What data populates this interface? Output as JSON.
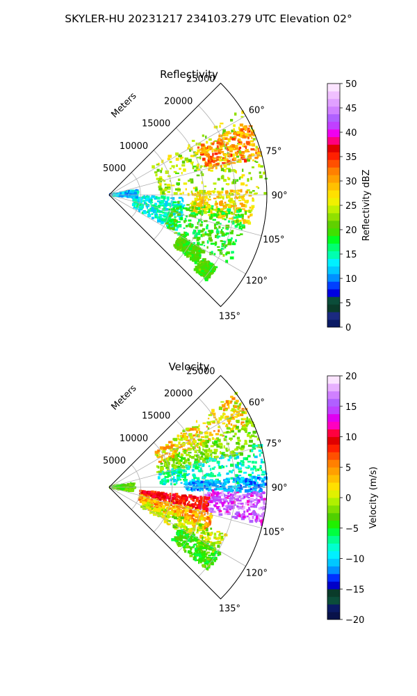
{
  "suptitle": "SKYLER-HU  20231217  234103.279 UTC Elevation 02°",
  "chart_data": [
    {
      "type": "heatmap",
      "title": "Reflectivity",
      "projection": "polar-sector",
      "azimuth_range_deg": [
        45,
        135
      ],
      "range_max_m": 25000,
      "range_label": "Meters",
      "range_ticks": [
        5000,
        10000,
        15000,
        20000,
        25000
      ],
      "range_tick_labels": [
        "5000",
        "10000",
        "15000",
        "20000",
        "25000"
      ],
      "angle_ticks": [
        60,
        75,
        90,
        105,
        120,
        135
      ],
      "angle_tick_labels": [
        "60°",
        "75°",
        "90°",
        "105°",
        "120°",
        "135°"
      ],
      "grid": true,
      "colorbar": {
        "label": "Reflectivity dBZ",
        "vmin": 0,
        "vmax": 50,
        "ticks": [
          0,
          5,
          10,
          15,
          20,
          25,
          30,
          35,
          40,
          45,
          50
        ],
        "tick_labels": [
          "0",
          "5",
          "10",
          "15",
          "20",
          "25",
          "30",
          "35",
          "40",
          "45",
          "50"
        ]
      },
      "echo_regions": [
        {
          "az": [
            57,
            90
          ],
          "r": [
            8000,
            25000
          ],
          "value": 24,
          "spread": 4
        },
        {
          "az": [
            62,
            76
          ],
          "r": [
            16000,
            25000
          ],
          "value": 31,
          "spread": 4
        },
        {
          "az": [
            88,
            102
          ],
          "r": [
            13000,
            23000
          ],
          "value": 27,
          "spread": 4
        },
        {
          "az": [
            92,
            118
          ],
          "r": [
            4000,
            12000
          ],
          "value": 14,
          "spread": 3
        },
        {
          "az": [
            96,
            120
          ],
          "r": [
            10000,
            22000
          ],
          "value": 19,
          "spread": 3
        },
        {
          "az": [
            80,
            96
          ],
          "r": [
            300,
            4500
          ],
          "value": 12,
          "spread": 3
        },
        {
          "az": [
            120,
            128
          ],
          "r": [
            13000,
            17500
          ],
          "value": 20,
          "spread": 2
        },
        {
          "az": [
            124,
            131
          ],
          "r": [
            18000,
            20500
          ],
          "value": 20,
          "spread": 2
        }
      ]
    },
    {
      "type": "heatmap",
      "title": "Velocity",
      "projection": "polar-sector",
      "azimuth_range_deg": [
        45,
        135
      ],
      "range_max_m": 25000,
      "range_label": "Meters",
      "range_ticks": [
        5000,
        10000,
        15000,
        20000,
        25000
      ],
      "range_tick_labels": [
        "5000",
        "10000",
        "15000",
        "20000",
        "25000"
      ],
      "angle_ticks": [
        60,
        75,
        90,
        105,
        120,
        135
      ],
      "angle_tick_labels": [
        "60°",
        "75°",
        "90°",
        "105°",
        "120°",
        "135°"
      ],
      "grid": true,
      "colorbar": {
        "label": "Velocity (m/s)",
        "vmin": -20,
        "vmax": 20,
        "ticks": [
          -20,
          -15,
          -10,
          -5,
          0,
          5,
          10,
          15,
          20
        ],
        "tick_labels": [
          "−20",
          "−15",
          "−10",
          "−5",
          "0",
          "5",
          "10",
          "15",
          "20"
        ]
      },
      "echo_regions": [
        {
          "az": [
            53,
            66
          ],
          "r": [
            9000,
            25000
          ],
          "value": 2,
          "spread": 4
        },
        {
          "az": [
            64,
            76
          ],
          "r": [
            8000,
            25000
          ],
          "value": -2,
          "spread": 2
        },
        {
          "az": [
            74,
            88
          ],
          "r": [
            8000,
            25000
          ],
          "value": -8,
          "spread": 3
        },
        {
          "az": [
            86,
            92
          ],
          "r": [
            12000,
            25000
          ],
          "value": -11,
          "spread": 2
        },
        {
          "az": [
            92,
            104
          ],
          "r": [
            15000,
            25000
          ],
          "value": 15,
          "spread": 3
        },
        {
          "az": [
            96,
            104
          ],
          "r": [
            5000,
            16000
          ],
          "value": 9,
          "spread": 2
        },
        {
          "az": [
            104,
            114
          ],
          "r": [
            5000,
            17000
          ],
          "value": 4,
          "spread": 3
        },
        {
          "az": [
            112,
            122
          ],
          "r": [
            6000,
            20000
          ],
          "value": 0,
          "spread": 3
        },
        {
          "az": [
            80,
            100
          ],
          "r": [
            300,
            4000
          ],
          "value": -3,
          "spread": 2
        },
        {
          "az": [
            120,
            130
          ],
          "r": [
            13000,
            20500
          ],
          "value": -4,
          "spread": 2
        }
      ]
    }
  ],
  "colors": {
    "axis": "#000000",
    "grid": "#b0b0b0",
    "reflectivity_scale": [
      "#0a1a64",
      "#1b2a80",
      "#0a3b2a",
      "#0b4d3a",
      "#0000e0",
      "#0040ff",
      "#0090ff",
      "#00c8ff",
      "#00f0ff",
      "#00ffb0",
      "#00ff70",
      "#00ff20",
      "#40e000",
      "#60d000",
      "#90e000",
      "#c0f000",
      "#f0f000",
      "#ffe000",
      "#ffc000",
      "#ffa000",
      "#ff8000",
      "#ff5000",
      "#ff2000",
      "#e00000",
      "#ff0080",
      "#f000f0",
      "#c040ff",
      "#b060ff",
      "#d080ff",
      "#e0a0ff",
      "#f0c0ff",
      "#fbe4ff"
    ],
    "velocity_scale": [
      "#08124a",
      "#0a1a64",
      "#0b4d3a",
      "#0a3b2a",
      "#0000c8",
      "#0030ff",
      "#0090ff",
      "#00c8ff",
      "#00f0ff",
      "#00ffd0",
      "#00ff90",
      "#00ff40",
      "#20f000",
      "#50d000",
      "#80e000",
      "#b0f000",
      "#e0f000",
      "#ffe000",
      "#ffc000",
      "#ffa000",
      "#ff8000",
      "#ff5000",
      "#ff2000",
      "#e00000",
      "#ff0040",
      "#ff00c0",
      "#e000f0",
      "#c040ff",
      "#b060ff",
      "#d080ff",
      "#e8b0ff",
      "#fbe4ff"
    ]
  }
}
